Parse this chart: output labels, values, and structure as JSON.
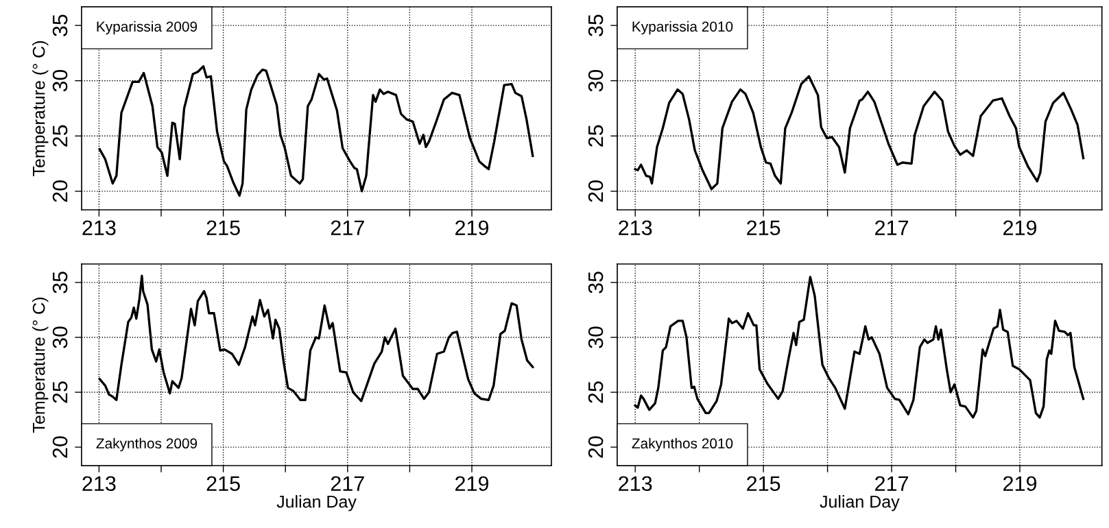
{
  "chart_data": [
    {
      "type": "line",
      "ylabel": "Temperature (° C)",
      "xlim": [
        212.72,
        220.28
      ],
      "ylim": [
        18.32,
        36.68
      ],
      "xticks": [
        213,
        {
          "value": 214,
          "label": null
        },
        215,
        {
          "value": 216,
          "label": null
        },
        217,
        {
          "value": 218,
          "label": null
        },
        219
      ],
      "yticks": [
        20,
        25,
        30,
        35
      ],
      "grid": true,
      "legend": "top left",
      "series": [
        {
          "name": "Kyparissia 2009",
          "color": "#000000",
          "x": [
            213.01,
            213.1,
            213.22,
            213.28,
            213.36,
            213.54,
            213.64,
            213.72,
            213.86,
            213.94,
            214.01,
            214.1,
            214.18,
            214.22,
            214.3,
            214.37,
            214.51,
            214.59,
            214.68,
            214.73,
            214.8,
            214.9,
            215.01,
            215.06,
            215.16,
            215.26,
            215.31,
            215.37,
            215.45,
            215.55,
            215.63,
            215.69,
            215.86,
            215.92,
            215.99,
            216.09,
            216.23,
            216.28,
            216.36,
            216.42,
            216.54,
            216.62,
            216.67,
            216.83,
            216.92,
            217.04,
            217.11,
            217.15,
            217.23,
            217.3,
            217.41,
            217.45,
            217.52,
            217.58,
            217.65,
            217.78,
            217.86,
            217.95,
            218.05,
            218.16,
            218.22,
            218.26,
            218.31,
            218.42,
            218.55,
            218.68,
            218.8,
            218.97,
            219.12,
            219.2,
            219.27,
            219.36,
            219.52,
            219.64,
            219.7,
            219.8,
            219.88,
            219.98
          ],
          "values": [
            23.8,
            22.9,
            20.7,
            21.4,
            27.1,
            29.9,
            29.9,
            30.7,
            27.7,
            24.0,
            23.5,
            21.4,
            26.2,
            26.1,
            22.9,
            27.5,
            30.6,
            30.8,
            31.3,
            30.3,
            30.4,
            25.4,
            22.7,
            22.3,
            20.8,
            19.6,
            20.7,
            27.4,
            29.2,
            30.5,
            31.0,
            30.9,
            27.8,
            25.1,
            23.9,
            21.4,
            20.7,
            21.1,
            27.7,
            28.3,
            30.6,
            30.1,
            30.2,
            27.3,
            23.9,
            22.7,
            22.1,
            22.0,
            20.0,
            21.4,
            28.7,
            28.1,
            29.2,
            28.8,
            29.0,
            28.7,
            27.0,
            26.5,
            26.3,
            24.3,
            25.1,
            24.0,
            24.5,
            26.2,
            28.3,
            28.9,
            28.7,
            24.8,
            22.7,
            22.3,
            22.0,
            24.5,
            29.6,
            29.7,
            28.9,
            28.6,
            26.5,
            23.2
          ]
        }
      ]
    },
    {
      "type": "line",
      "xlim": [
        212.72,
        220.28
      ],
      "ylim": [
        18.32,
        36.68
      ],
      "xticks": [
        213,
        {
          "value": 214,
          "label": null
        },
        215,
        {
          "value": 216,
          "label": null
        },
        217,
        {
          "value": 218,
          "label": null
        },
        219
      ],
      "yticks": [
        20,
        25,
        30,
        35
      ],
      "grid": true,
      "legend": "top left",
      "series": [
        {
          "name": "Kyparissia 2010",
          "color": "#000000",
          "x": [
            213.0,
            213.04,
            213.09,
            213.17,
            213.23,
            213.26,
            213.34,
            213.43,
            213.53,
            213.66,
            213.74,
            213.84,
            213.93,
            214.05,
            214.19,
            214.28,
            214.36,
            214.51,
            214.64,
            214.72,
            214.84,
            214.96,
            215.04,
            215.11,
            215.18,
            215.27,
            215.34,
            215.44,
            215.59,
            215.71,
            215.85,
            215.9,
            215.99,
            216.07,
            216.18,
            216.27,
            216.35,
            216.5,
            216.54,
            216.63,
            216.73,
            216.95,
            217.09,
            217.17,
            217.31,
            217.36,
            217.5,
            217.67,
            217.79,
            217.88,
            217.98,
            218.07,
            218.17,
            218.27,
            218.39,
            218.58,
            218.72,
            218.84,
            218.94,
            218.99,
            219.13,
            219.27,
            219.32,
            219.4,
            219.52,
            219.68,
            219.8,
            219.9,
            219.99
          ],
          "values": [
            22.0,
            21.9,
            22.4,
            21.4,
            21.3,
            20.7,
            24.0,
            25.7,
            28.0,
            29.2,
            28.8,
            26.5,
            23.7,
            21.9,
            20.2,
            20.7,
            25.7,
            28.1,
            29.2,
            28.8,
            27.1,
            24.0,
            22.6,
            22.5,
            21.4,
            20.7,
            25.7,
            27.1,
            29.7,
            30.4,
            28.7,
            25.8,
            24.8,
            24.9,
            24.0,
            21.7,
            25.7,
            28.2,
            28.3,
            29.0,
            28.1,
            24.3,
            22.4,
            22.6,
            22.5,
            25.1,
            27.7,
            29.0,
            28.2,
            25.4,
            24.1,
            23.3,
            23.7,
            23.2,
            26.8,
            28.2,
            28.4,
            26.8,
            25.7,
            24.0,
            22.2,
            20.9,
            21.7,
            26.3,
            28.0,
            28.9,
            27.4,
            26.0,
            23.0
          ]
        }
      ]
    },
    {
      "type": "line",
      "ylabel": "Temperature (° C)",
      "xlabel": "Julian Day",
      "xlim": [
        212.72,
        220.28
      ],
      "ylim": [
        18.32,
        36.68
      ],
      "xticks": [
        213,
        {
          "value": 214,
          "label": null
        },
        215,
        {
          "value": 216,
          "label": null
        },
        217,
        {
          "value": 218,
          "label": null
        },
        219
      ],
      "yticks": [
        20,
        25,
        30,
        35
      ],
      "grid": true,
      "legend": "bottom left",
      "series": [
        {
          "name": "Zakynthos 2009",
          "color": "#000000",
          "x": [
            213.01,
            213.1,
            213.16,
            213.22,
            213.28,
            213.36,
            213.47,
            213.52,
            213.56,
            213.6,
            213.65,
            213.69,
            213.71,
            213.78,
            213.85,
            213.92,
            213.97,
            214.04,
            214.14,
            214.18,
            214.28,
            214.33,
            214.48,
            214.54,
            214.59,
            214.69,
            214.73,
            214.77,
            214.85,
            214.95,
            215.02,
            215.14,
            215.25,
            215.35,
            215.47,
            215.51,
            215.59,
            215.66,
            215.72,
            215.8,
            215.84,
            215.9,
            215.97,
            216.04,
            216.13,
            216.24,
            216.32,
            216.4,
            216.49,
            216.54,
            216.63,
            216.71,
            216.76,
            216.88,
            216.98,
            217.09,
            217.22,
            217.43,
            217.55,
            217.6,
            217.65,
            217.71,
            217.77,
            217.89,
            218.05,
            218.13,
            218.23,
            218.31,
            218.44,
            218.55,
            218.63,
            218.69,
            218.76,
            218.94,
            219.04,
            219.15,
            219.27,
            219.35,
            219.46,
            219.53,
            219.64,
            219.72,
            219.8,
            219.89,
            219.98
          ],
          "values": [
            26.2,
            25.6,
            24.8,
            24.6,
            24.3,
            27.5,
            31.4,
            31.8,
            32.7,
            31.7,
            33.5,
            35.6,
            34.2,
            33.0,
            28.9,
            27.8,
            28.9,
            26.8,
            24.9,
            26.0,
            25.4,
            26.3,
            32.6,
            31.1,
            33.3,
            34.2,
            33.6,
            32.2,
            32.2,
            28.8,
            28.9,
            28.5,
            27.5,
            29.1,
            31.9,
            31.1,
            33.4,
            31.9,
            32.5,
            29.9,
            31.6,
            30.8,
            27.8,
            25.4,
            25.1,
            24.3,
            24.3,
            28.8,
            30.0,
            29.9,
            32.9,
            30.8,
            31.3,
            26.9,
            26.8,
            25.0,
            24.2,
            27.6,
            28.7,
            30.0,
            29.4,
            30.1,
            30.8,
            26.5,
            25.3,
            25.3,
            24.4,
            25.0,
            28.5,
            28.7,
            30.0,
            30.4,
            30.5,
            26.2,
            24.9,
            24.4,
            24.3,
            25.6,
            30.3,
            30.6,
            33.1,
            32.9,
            29.8,
            27.9,
            27.3
          ]
        }
      ]
    },
    {
      "type": "line",
      "xlabel": "Julian Day",
      "xlim": [
        212.72,
        220.28
      ],
      "ylim": [
        18.32,
        36.68
      ],
      "xticks": [
        213,
        {
          "value": 214,
          "label": null
        },
        215,
        {
          "value": 216,
          "label": null
        },
        217,
        {
          "value": 218,
          "label": null
        },
        219
      ],
      "yticks": [
        20,
        25,
        30,
        35
      ],
      "grid": true,
      "legend": "bottom left",
      "series": [
        {
          "name": "Zakynthos 2010",
          "color": "#000000",
          "x": [
            213.0,
            213.04,
            213.09,
            213.13,
            213.22,
            213.31,
            213.36,
            213.43,
            213.48,
            213.55,
            213.67,
            213.74,
            213.8,
            213.88,
            213.92,
            213.97,
            214.1,
            214.15,
            214.27,
            214.34,
            214.46,
            214.51,
            214.58,
            214.68,
            214.76,
            214.85,
            214.89,
            214.94,
            215.06,
            215.23,
            215.3,
            215.39,
            215.47,
            215.51,
            215.56,
            215.63,
            215.73,
            215.8,
            215.92,
            216.02,
            216.12,
            216.27,
            216.42,
            216.5,
            216.59,
            216.64,
            216.69,
            216.81,
            216.93,
            217.05,
            217.12,
            217.26,
            217.34,
            217.44,
            217.51,
            217.56,
            217.65,
            217.69,
            217.73,
            217.77,
            217.86,
            217.92,
            217.98,
            218.07,
            218.15,
            218.27,
            218.32,
            218.42,
            218.46,
            218.59,
            218.65,
            218.69,
            218.74,
            218.81,
            218.89,
            218.99,
            219.16,
            219.25,
            219.31,
            219.37,
            219.42,
            219.46,
            219.49,
            219.55,
            219.61,
            219.7,
            219.75,
            219.79,
            219.85,
            219.99
          ],
          "values": [
            23.8,
            23.6,
            24.7,
            24.4,
            23.4,
            24.0,
            25.4,
            28.8,
            29.1,
            31.0,
            31.5,
            31.5,
            30.0,
            25.4,
            25.5,
            24.4,
            23.1,
            23.1,
            24.2,
            25.7,
            31.7,
            31.3,
            31.5,
            30.8,
            32.2,
            31.1,
            31.1,
            27.1,
            25.8,
            24.4,
            25.1,
            28.0,
            30.4,
            29.3,
            31.4,
            31.6,
            35.5,
            33.8,
            27.5,
            26.3,
            25.4,
            23.5,
            28.7,
            28.5,
            31.0,
            29.8,
            30.0,
            28.5,
            25.4,
            24.4,
            24.3,
            23.0,
            24.3,
            29.1,
            29.8,
            29.5,
            29.8,
            31.0,
            29.8,
            30.7,
            27.1,
            25.0,
            25.7,
            23.8,
            23.7,
            22.7,
            23.3,
            28.9,
            28.3,
            30.8,
            31.0,
            32.5,
            30.7,
            30.5,
            27.4,
            27.1,
            26.1,
            23.1,
            22.7,
            23.7,
            28.0,
            28.8,
            28.5,
            31.5,
            30.6,
            30.5,
            30.2,
            30.4,
            27.3,
            24.4
          ]
        }
      ]
    }
  ]
}
